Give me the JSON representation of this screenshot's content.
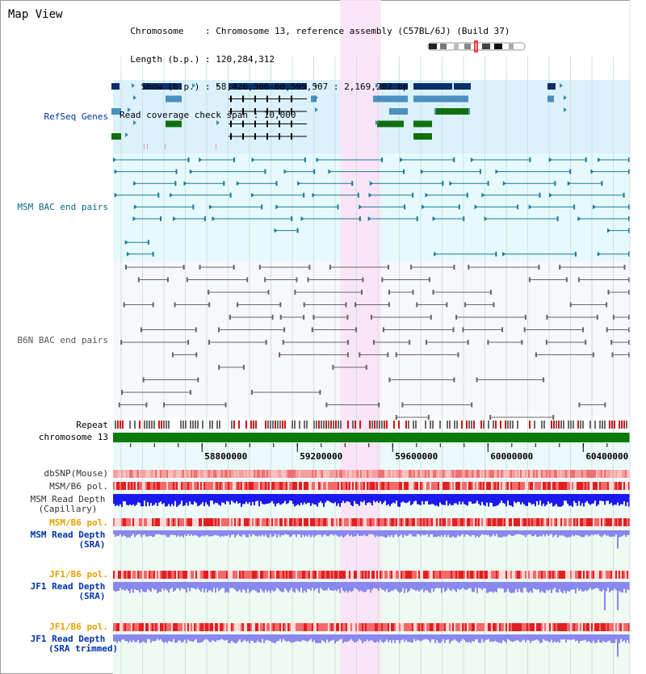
{
  "header": {
    "title": "Map View",
    "info_lines": [
      "  Chromosome    : Chromosome 13, reference assembly (C57BL/6J) (Build 37)",
      "  Length (b.p.) : 120,284,312",
      "    Show (b.p.) : 58,426,306-60,595,507 : 2,169,202 bp",
      "Read coverage check span : 10,000"
    ]
  },
  "labels": {
    "refseq": "RefSeq Genes",
    "msm_bac": "MSM BAC end pairs",
    "b6n_bac": "B6N BAC end pairs",
    "repeat": "Repeat",
    "chromosome": "chromosome 13",
    "dbsnp": "dbSNP(Mouse)",
    "msm_b6_pol_1": "MSM/B6 pol.",
    "msm_depth_cap_1": "MSM Read Depth",
    "msm_depth_cap_2": "(Capillary)",
    "msm_b6_pol_2": "MSM/B6 pol.",
    "msm_depth_sra_1": "MSM Read Depth",
    "msm_depth_sra_2": "(SRA)",
    "jf1_b6_pol_1": "JF1/B6 pol.",
    "jf1_depth_sra_1": "JF1 Read Depth",
    "jf1_depth_sra_2": "(SRA)",
    "jf1_b6_pol_2": "JF1/B6 pol.",
    "jf1_depth_trim_1": "JF1 Read Depth",
    "jf1_depth_trim_2": "(SRA trimmed)"
  },
  "axis": {
    "tick_labels": [
      "58800000",
      "59200000",
      "59600000",
      "60000000",
      "60400000"
    ],
    "range": [
      58426306,
      60595507
    ],
    "highlight_range": [
      59380000,
      59550000
    ]
  },
  "colors": {
    "refseq_bg": "#dbf1fb",
    "msm_bg": "#e6fafd",
    "b6n_bg": "#f6f8fc",
    "highlight": "#fbe2f6",
    "gene_dark": "#0a2f6b",
    "gene_mid": "#4a90c0",
    "gene_green": "#107010",
    "msm_line": "#1a7a9a",
    "b6n_line": "#666666",
    "chrom_bar": "#0a7a0a",
    "depth_blue": "#1a1aee",
    "depth_light": "#8888ee",
    "label_blue": "#0033aa",
    "label_orange": "#e8a000",
    "label_teal": "#0a6a8a"
  }
}
